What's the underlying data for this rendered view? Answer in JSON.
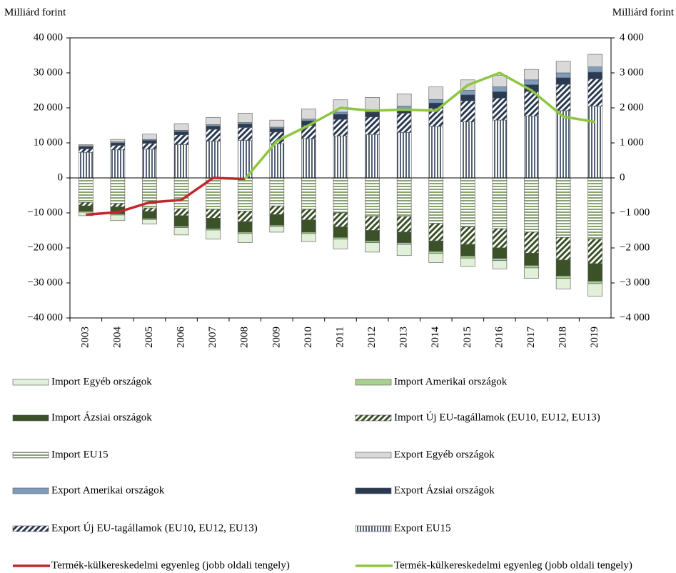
{
  "chart_data": {
    "type": "bar",
    "y_label": "Milliárd forint",
    "y2_label": "Milliárd forint",
    "categories": [
      "2003",
      "2004",
      "2005",
      "2006",
      "2007",
      "2008",
      "2009",
      "2010",
      "2011",
      "2012",
      "2013",
      "2014",
      "2015",
      "2016",
      "2017",
      "2018",
      "2019"
    ],
    "ylim": [
      -40000,
      40000
    ],
    "yticks": [
      {
        "value": -40000,
        "label": "−40 000"
      },
      {
        "value": -30000,
        "label": "−30 000"
      },
      {
        "value": -20000,
        "label": "−20 000"
      },
      {
        "value": -10000,
        "label": "−10 000"
      },
      0,
      {
        "value": 10000,
        "label": "10 000"
      },
      {
        "value": 20000,
        "label": "20 000"
      },
      {
        "value": 30000,
        "label": "30 000"
      },
      {
        "value": 40000,
        "label": "40 000"
      }
    ],
    "y2lim": [
      -4000,
      4000
    ],
    "y2ticks": [
      {
        "value": -4000,
        "label": "−4 000"
      },
      {
        "value": -3000,
        "label": "−3 000"
      },
      {
        "value": -2000,
        "label": "−2 000"
      },
      {
        "value": -1000,
        "label": "−1 000"
      },
      0,
      {
        "value": 1000,
        "label": "1 000"
      },
      {
        "value": 2000,
        "label": "2 000"
      },
      {
        "value": 3000,
        "label": "3 000"
      },
      {
        "value": 4000,
        "label": "4 000"
      }
    ],
    "series": [
      {
        "name": "Import Egyéb országok",
        "color": "#e2efd9",
        "pattern": "solid",
        "values": [
          -1000,
          -1600,
          -1300,
          -2100,
          -2600,
          -2600,
          -1600,
          -2300,
          -2800,
          -2700,
          -3200,
          -2600,
          -2400,
          -2400,
          -3000,
          -3000,
          -3600
        ]
      },
      {
        "name": "Import Amerikai országok",
        "color": "#a9d18e",
        "pattern": "solid",
        "values": [
          -300,
          -300,
          -300,
          -400,
          -400,
          -400,
          -400,
          -400,
          -500,
          -500,
          -500,
          -600,
          -600,
          -600,
          -700,
          -700,
          -700
        ]
      },
      {
        "name": "Import Ázsiai országok",
        "color": "#3b5128",
        "pattern": "solid",
        "values": [
          -1500,
          -2000,
          -2000,
          -3000,
          -3000,
          -3000,
          -3000,
          -3500,
          -3000,
          -3000,
          -3000,
          -3000,
          -3300,
          -3000,
          -3500,
          -4500,
          -5000
        ]
      },
      {
        "name": "Import Új EU-tagállamok (EU10, EU12, EU13)",
        "color": "#3b5128",
        "pattern": "diagonal",
        "values": [
          -1000,
          -1000,
          -1000,
          -2000,
          -2500,
          -3000,
          -2500,
          -3000,
          -4000,
          -4000,
          -4500,
          -5000,
          -5000,
          -5500,
          -6000,
          -6500,
          -7000
        ]
      },
      {
        "name": "Import EU15",
        "color": "#6b8a4e",
        "pattern": "horizontal",
        "values": [
          -7000,
          -7300,
          -8600,
          -8800,
          -9000,
          -9500,
          -8000,
          -9000,
          -10000,
          -11000,
          -11000,
          -13000,
          -14000,
          -14500,
          -15500,
          -17000,
          -17500
        ]
      },
      {
        "name": "Export Egyéb országok",
        "color": "#d9d9d9",
        "pattern": "solid",
        "values": [
          300,
          700,
          1500,
          1900,
          2100,
          2700,
          2000,
          2900,
          3500,
          3500,
          3500,
          3600,
          3000,
          3300,
          3000,
          3300,
          3600
        ]
      },
      {
        "name": "Export Amerikai országok",
        "color": "#7f9cbd",
        "pattern": "solid",
        "values": [
          300,
          300,
          300,
          400,
          400,
          400,
          400,
          500,
          600,
          700,
          800,
          1000,
          1300,
          1400,
          1400,
          1400,
          1500
        ]
      },
      {
        "name": "Export Ázsiai országok",
        "color": "#2a3a52",
        "pattern": "solid",
        "values": [
          600,
          700,
          800,
          900,
          900,
          1000,
          1000,
          1300,
          1500,
          1400,
          1200,
          1500,
          1700,
          1800,
          1900,
          1900,
          1900
        ]
      },
      {
        "name": "Export Új EU-tagállamok (EU10, EU12, EU13)",
        "color": "#2a3a52",
        "pattern": "diagonal",
        "values": [
          1000,
          1300,
          1700,
          2800,
          3400,
          3700,
          3300,
          3800,
          4700,
          5000,
          5500,
          5200,
          6000,
          6300,
          7000,
          7500,
          7800
        ]
      },
      {
        "name": "Export EU15",
        "color": "#2a3a52",
        "pattern": "vertical",
        "values": [
          7300,
          8000,
          8200,
          9500,
          10500,
          10700,
          9800,
          11200,
          12000,
          12400,
          13000,
          14700,
          16000,
          16500,
          17700,
          19200,
          20500
        ]
      },
      {
        "name": "Termék-külkereskedelmi egyenleg (jobb oldali tengely)",
        "color": "#c0282d",
        "type": "line",
        "axis": "y2",
        "values": [
          -1050,
          -980,
          -700,
          -630,
          0,
          -30,
          null,
          null,
          null,
          null,
          null,
          null,
          null,
          null,
          null,
          null,
          null
        ]
      },
      {
        "name": "Termék-külkereskedelmi egyenleg (jobb oldali tengely)",
        "color": "#8dc63f",
        "type": "line",
        "axis": "y2",
        "values": [
          null,
          null,
          null,
          null,
          null,
          -30,
          1050,
          1500,
          2000,
          1920,
          1950,
          1920,
          2650,
          3000,
          2500,
          1750,
          1600
        ]
      }
    ]
  }
}
